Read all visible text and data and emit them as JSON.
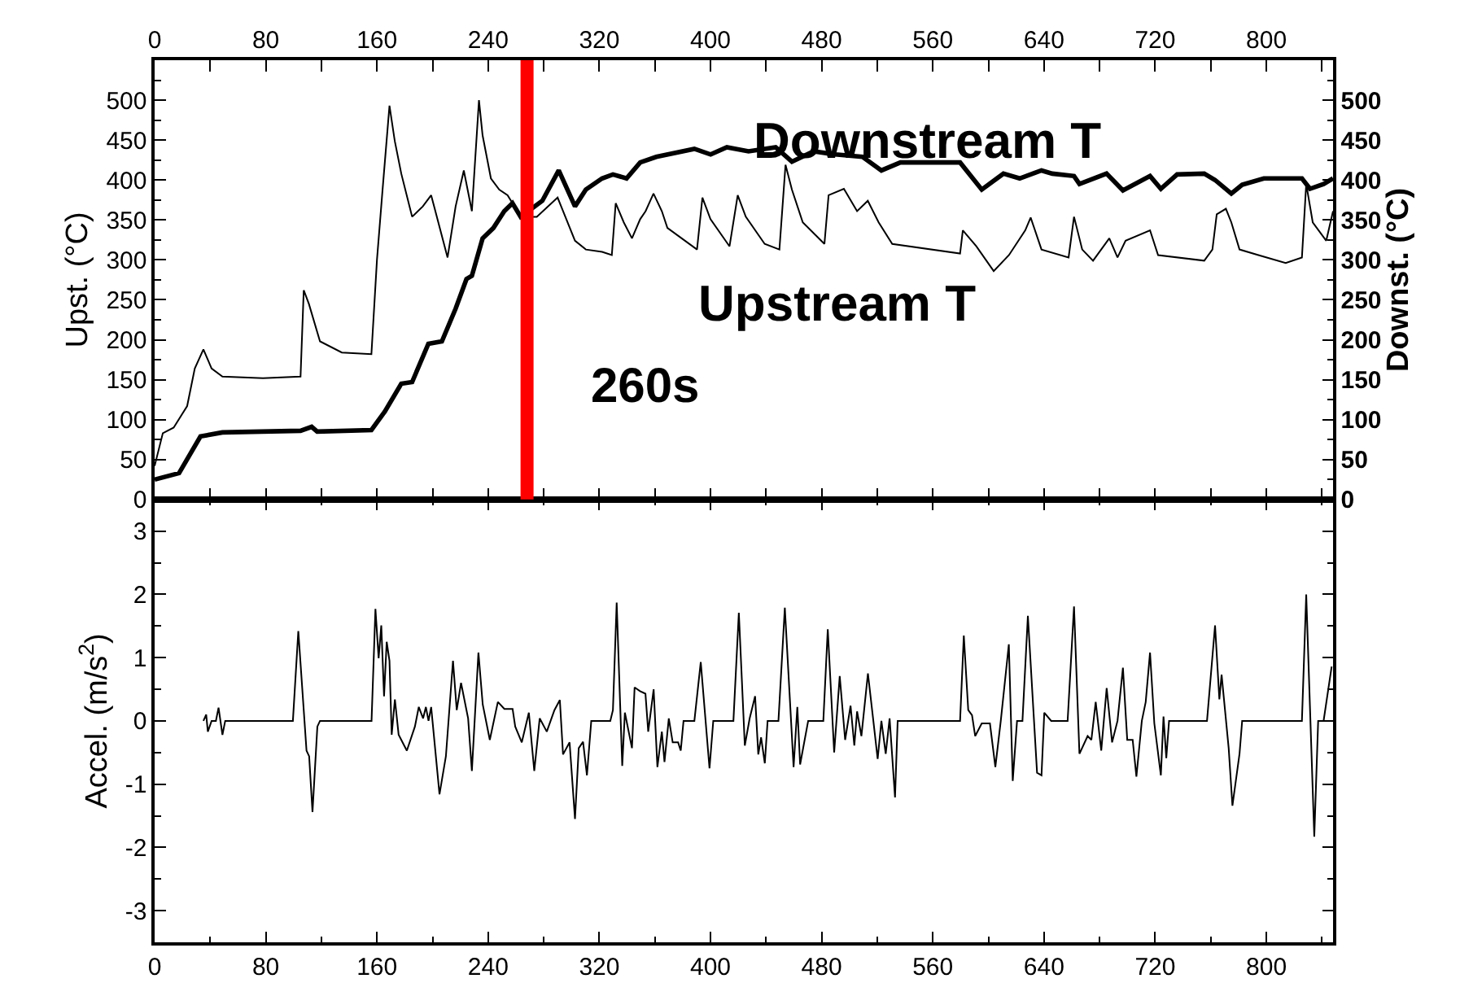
{
  "chart_data": [
    {
      "type": "line",
      "ylabel": "Upst. (°C)",
      "y2label": "Downst. (°C)",
      "xlim": [
        0,
        848
      ],
      "xticks": [
        0,
        80,
        160,
        240,
        320,
        400,
        480,
        560,
        640,
        720,
        800
      ],
      "ylim": [
        0,
        550
      ],
      "yticks": [
        0,
        50,
        100,
        150,
        200,
        250,
        300,
        350,
        400,
        450,
        500
      ],
      "y2lim": [
        0,
        550
      ],
      "y2ticks": [
        0,
        50,
        100,
        150,
        200,
        250,
        300,
        350,
        400,
        450,
        500
      ],
      "series": [
        {
          "name": "Upstream T",
          "color": "#000000",
          "x": [
            0,
            5.9,
            13.7,
            23.4,
            28.9,
            35.1,
            41,
            48.8,
            78,
            105,
            107.3,
            111,
            119,
            134.7,
            156,
            160,
            163.9,
            169,
            172.8,
            177.5,
            185.3,
            193,
            199,
            210.8,
            216.6,
            222.5,
            228.3,
            233.4,
            236,
            242,
            248,
            254,
            263.5,
            275,
            290,
            302.5,
            310.3,
            322,
            329,
            331.8,
            337.6,
            343.5,
            349.4,
            353.3,
            359,
            365,
            369,
            390.3,
            394.2,
            400,
            413.7,
            419.6,
            425.4,
            439,
            449.6,
            454,
            458.6,
            466.4,
            482,
            485,
            496,
            505.5,
            513.2,
            521,
            530.8,
            579.6,
            581.6,
            591.3,
            603.8,
            614.8,
            626.5,
            630.4,
            638.2,
            657.7,
            661.6,
            667.5,
            675.3,
            687,
            692.9,
            698.7,
            716.3,
            722.1,
            755.3,
            761.2,
            764.3,
            770.9,
            774.8,
            780.7,
            794.3,
            813.9,
            825.6,
            828.7,
            833.4,
            843.1,
            848
          ],
          "values": [
            42,
            83,
            90,
            117,
            164,
            188,
            164,
            154,
            152,
            154,
            262,
            245,
            198,
            184,
            182,
            300,
            385,
            493,
            449,
            408,
            354,
            367,
            381,
            303,
            367,
            412,
            361,
            500,
            456,
            402,
            388,
            381,
            354,
            354,
            378,
            324,
            313,
            310,
            306,
            371,
            347,
            327,
            351,
            361,
            383,
            361,
            340,
            313,
            378,
            351,
            317,
            381,
            354,
            320,
            313,
            419,
            388,
            347,
            320,
            381,
            389,
            361,
            374,
            347,
            320,
            308,
            337,
            317,
            286,
            306,
            337,
            353,
            313,
            303,
            354,
            313,
            299,
            327,
            303,
            324,
            337,
            306,
            299,
            313,
            357,
            364,
            347,
            313,
            306,
            296,
            303,
            395,
            347,
            324,
            361
          ]
        },
        {
          "name": "Downstream T",
          "color": "#000000",
          "axis": "y2",
          "x": [
            0,
            17.6,
            33,
            48.8,
            105,
            113,
            117,
            156,
            165.6,
            177.5,
            185.3,
            197,
            206.7,
            216.6,
            224.4,
            228.3,
            236,
            243.8,
            251.6,
            257.5,
            263.4,
            279,
            290.8,
            302.5,
            310.3,
            322,
            329.8,
            339.6,
            349.4,
            361,
            388.4,
            400.1,
            411.8,
            427.4,
            446.9,
            458.6,
            474.2,
            489.8,
            509.4,
            523,
            536.7,
            579.6,
            595.2,
            610.8,
            622.5,
            638.2,
            646,
            661.6,
            665.5,
            685,
            696.8,
            716.3,
            724.1,
            735.8,
            755.3,
            763.1,
            774.8,
            782.6,
            798.2,
            825.6,
            831.4,
            841.2,
            848
          ],
          "values": [
            25,
            33,
            79,
            84,
            86,
            91,
            85,
            87,
            110,
            145,
            147,
            195,
            198,
            239,
            276,
            280,
            327,
            340,
            361,
            371,
            354,
            374,
            412,
            367,
            388,
            402,
            407,
            402,
            422,
            429,
            439,
            432,
            441,
            436,
            441,
            423,
            436,
            432,
            429,
            412,
            422,
            422,
            388,
            408,
            402,
            412,
            408,
            405,
            395,
            408,
            387,
            405,
            389,
            407,
            408,
            400,
            383,
            394,
            402,
            402,
            389,
            395,
            402
          ]
        }
      ],
      "ref_lines": [
        {
          "axis": "x",
          "value": 268,
          "label": "260s",
          "color": "#ff0000"
        }
      ]
    },
    {
      "type": "line",
      "ylabel": "Accel. (m/s$^{2}$)",
      "xlim": [
        0,
        848
      ],
      "xticks": [
        0,
        80,
        160,
        240,
        320,
        400,
        480,
        560,
        640,
        720,
        800
      ],
      "ylim": [
        -3.5,
        3.5
      ],
      "yticks": [
        -3,
        -2,
        -1,
        0,
        1,
        2,
        3
      ],
      "series": [
        {
          "color": "#000000",
          "x": [
            35.1,
            37.1,
            38.3,
            41,
            44.1,
            46,
            48.8,
            50.8,
            99.5,
            103.4,
            109.3,
            111.2,
            113.6,
            117.1,
            119,
            156.1,
            158.9,
            161.2,
            163.1,
            165.1,
            167,
            169,
            170.6,
            172.9,
            175.6,
            181.5,
            187.3,
            190.1,
            193.2,
            195.2,
            197.1,
            199,
            205,
            209.6,
            214.7,
            217.4,
            220.5,
            225.6,
            228.3,
            233,
            236.1,
            241.2,
            247,
            251.7,
            257.6,
            259.5,
            264.2,
            269.3,
            273.2,
            277.1,
            282.2,
            287.7,
            291.6,
            293.9,
            298.6,
            302.5,
            305.2,
            308.3,
            311.1,
            314.2,
            327.9,
            329.8,
            332.5,
            336.5,
            338.4,
            343.5,
            345.4,
            349.3,
            353.2,
            355.2,
            359.1,
            361.8,
            365,
            366.9,
            370,
            372.8,
            376.7,
            378.6,
            380.6,
            388.4,
            393,
            399.3,
            402,
            416.5,
            420.4,
            424.7,
            428.2,
            432.1,
            434.4,
            436.4,
            439.1,
            441.1,
            448.9,
            453.5,
            459.8,
            462.5,
            464.5,
            470.3,
            481.2,
            484.4,
            489,
            493,
            496.9,
            500.8,
            503.5,
            505.5,
            508.6,
            513.3,
            517.2,
            520.3,
            523,
            526.1,
            528.9,
            532.8,
            534.7,
            579.6,
            582.3,
            585.5,
            588.2,
            590.5,
            595.2,
            601.1,
            605,
            608.9,
            614.7,
            617.5,
            620.6,
            624.5,
            628.4,
            635,
            638.2,
            640.2,
            645.2,
            657,
            661.6,
            665.5,
            671.4,
            674.1,
            677.2,
            681.2,
            685.1,
            689,
            692.9,
            696.8,
            699.9,
            703.8,
            706.5,
            710.4,
            713.2,
            716.3,
            719.4,
            724.1,
            726,
            728,
            730,
            757.3,
            763.1,
            766.2,
            767.8,
            772.9,
            775.6,
            780.7,
            782.6,
            825.6,
            828.7,
            834.5,
            837.3,
            841.2,
            847
          ],
          "values": [
            0,
            0.1,
            -0.17,
            0,
            0,
            0.21,
            -0.22,
            0,
            0,
            1.42,
            -0.47,
            -0.56,
            -1.44,
            -0.09,
            0,
            0,
            1.77,
            0.99,
            1.51,
            0.39,
            1.25,
            0.95,
            -0.22,
            0.34,
            -0.22,
            -0.47,
            -0.09,
            0.22,
            0.04,
            0.22,
            0,
            0.22,
            -1.16,
            -0.56,
            0.95,
            0.17,
            0.6,
            0.04,
            -0.79,
            1.08,
            0.26,
            -0.3,
            0.3,
            0.19,
            0.19,
            -0.09,
            -0.34,
            0.13,
            -0.79,
            0.04,
            -0.17,
            0.17,
            0.33,
            -0.53,
            -0.34,
            -1.55,
            -0.43,
            -0.33,
            -0.86,
            0,
            0,
            0.17,
            1.87,
            -0.71,
            0.13,
            -0.43,
            0.53,
            0.47,
            0.43,
            -0.17,
            0.5,
            -0.73,
            -0.17,
            -0.65,
            0.04,
            -0.34,
            -0.34,
            -0.47,
            0,
            0,
            0.93,
            -0.75,
            0,
            0,
            1.71,
            -0.39,
            0.04,
            0.39,
            -0.53,
            -0.26,
            -0.67,
            0,
            0,
            1.79,
            -0.73,
            0.22,
            -0.69,
            0,
            0,
            1.45,
            -0.5,
            0.71,
            -0.3,
            0.24,
            -0.39,
            0.15,
            -0.24,
            0.75,
            0,
            -0.6,
            0,
            -0.52,
            0.04,
            -1.21,
            0,
            0,
            1.35,
            0.17,
            0.09,
            -0.24,
            -0.04,
            -0.04,
            -0.73,
            0,
            1.21,
            -0.95,
            0,
            0,
            1.66,
            -0.82,
            -0.86,
            0.13,
            0,
            0,
            1.81,
            -0.52,
            -0.24,
            -0.3,
            0.3,
            -0.47,
            0.52,
            -0.34,
            0,
            0.84,
            -0.3,
            -0.3,
            -0.88,
            0,
            0.3,
            1.08,
            -0.04,
            -0.86,
            0.07,
            -0.59,
            0,
            0,
            1.51,
            0.34,
            0.73,
            -0.43,
            -1.34,
            -0.52,
            0,
            0,
            2.0,
            -1.83,
            0,
            0,
            0.86
          ]
        }
      ]
    }
  ]
}
